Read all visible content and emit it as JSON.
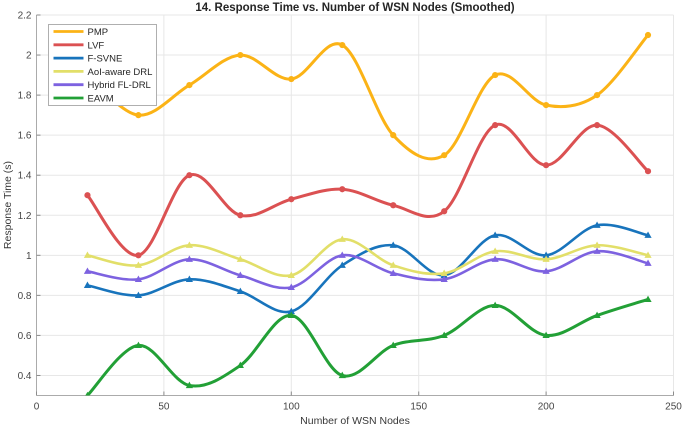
{
  "chart_data": {
    "type": "line",
    "title": "14. Response Time vs. Number of WSN Nodes (Smoothed)",
    "xlabel": "Number of WSN Nodes",
    "ylabel": "Response Time (s)",
    "xlim": [
      0,
      250
    ],
    "ylim": [
      0.3,
      2.2
    ],
    "xticks": [
      0,
      50,
      100,
      150,
      200,
      250
    ],
    "yticks": [
      0.4,
      0.6,
      0.8,
      1,
      1.2,
      1.4,
      1.6,
      1.8,
      2,
      2.2
    ],
    "grid": true,
    "smoothed": true,
    "legend_position": "top-left",
    "x": [
      20,
      40,
      60,
      80,
      100,
      120,
      140,
      160,
      180,
      200,
      220,
      240
    ],
    "series": [
      {
        "name": "PMP",
        "color": "#FBB316",
        "marker": "circle",
        "line_width": 3,
        "values": [
          1.9,
          1.7,
          1.85,
          2.0,
          1.88,
          2.05,
          1.6,
          1.5,
          1.9,
          1.75,
          1.8,
          2.1
        ]
      },
      {
        "name": "LVF",
        "color": "#DB5152",
        "marker": "circle",
        "line_width": 3,
        "values": [
          1.3,
          1.0,
          1.4,
          1.2,
          1.28,
          1.33,
          1.25,
          1.22,
          1.65,
          1.45,
          1.65,
          1.42
        ]
      },
      {
        "name": "F-SVNE",
        "color": "#1874BC",
        "marker": "triangle",
        "line_width": 2.6,
        "values": [
          0.85,
          0.8,
          0.88,
          0.82,
          0.72,
          0.95,
          1.05,
          0.9,
          1.1,
          1.0,
          1.15,
          1.1
        ]
      },
      {
        "name": "AoI-aware DRL",
        "color": "#E2DF69",
        "marker": "triangle",
        "line_width": 2.6,
        "values": [
          1.0,
          0.95,
          1.05,
          0.98,
          0.9,
          1.08,
          0.95,
          0.91,
          1.02,
          0.98,
          1.05,
          1.0
        ]
      },
      {
        "name": "Hybrid FL-DRL",
        "color": "#7D62E0",
        "marker": "triangle",
        "line_width": 2.6,
        "values": [
          0.92,
          0.88,
          0.98,
          0.9,
          0.84,
          1.0,
          0.91,
          0.88,
          0.98,
          0.92,
          1.02,
          0.96
        ]
      },
      {
        "name": "EAVM",
        "color": "#22A036",
        "marker": "triangle",
        "line_width": 3,
        "values": [
          0.3,
          0.55,
          0.35,
          0.45,
          0.7,
          0.4,
          0.55,
          0.6,
          0.75,
          0.6,
          0.7,
          0.78
        ]
      }
    ]
  },
  "style": {
    "grid_color": "#E7E7E7",
    "box_color": "#E7E7E7",
    "axis_color": "#ABABAB",
    "tick_color": "#8C8C8C",
    "legend_border_color": "#AFAFAF",
    "legend_bg_color": "#FFFFFF"
  }
}
